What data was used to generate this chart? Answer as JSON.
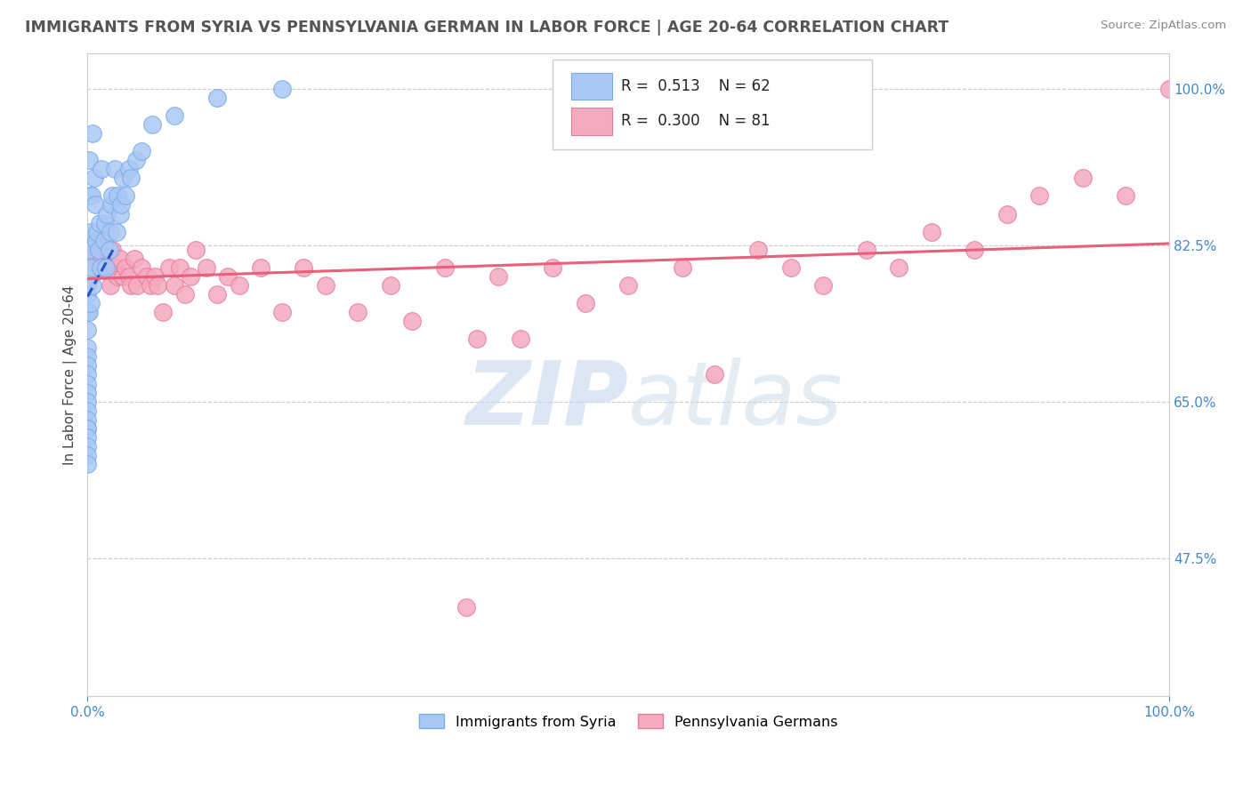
{
  "title": "IMMIGRANTS FROM SYRIA VS PENNSYLVANIA GERMAN IN LABOR FORCE | AGE 20-64 CORRELATION CHART",
  "source_text": "Source: ZipAtlas.com",
  "ylabel": "In Labor Force | Age 20-64",
  "xmin": 0.0,
  "xmax": 1.0,
  "ymin": 0.32,
  "ymax": 1.04,
  "yticks": [
    0.475,
    0.65,
    0.825,
    1.0
  ],
  "ytick_labels": [
    "47.5%",
    "65.0%",
    "82.5%",
    "100.0%"
  ],
  "xtick_labels": [
    "0.0%",
    "100.0%"
  ],
  "legend_R1": "0.513",
  "legend_N1": "62",
  "legend_R2": "0.300",
  "legend_N2": "81",
  "color_syria": "#aac8f5",
  "color_pa_german": "#f5aac0",
  "edge_syria": "#7aaae8",
  "edge_pa": "#e87a9a",
  "trendline_color_syria": "#2255cc",
  "trendline_color_pa_german": "#e8607a",
  "watermark_color": "#c5d8ee",
  "background_color": "#ffffff",
  "syria_x": [
    0.0,
    0.0,
    0.0,
    0.0,
    0.0,
    0.0,
    0.0,
    0.0,
    0.0,
    0.0,
    0.0,
    0.0,
    0.0,
    0.0,
    0.0,
    0.0,
    0.0,
    0.0,
    0.0,
    0.0,
    0.001,
    0.001,
    0.001,
    0.002,
    0.002,
    0.003,
    0.003,
    0.004,
    0.004,
    0.005,
    0.005,
    0.006,
    0.007,
    0.008,
    0.009,
    0.01,
    0.011,
    0.012,
    0.013,
    0.015,
    0.016,
    0.017,
    0.018,
    0.02,
    0.021,
    0.022,
    0.023,
    0.025,
    0.027,
    0.028,
    0.03,
    0.031,
    0.033,
    0.035,
    0.038,
    0.04,
    0.045,
    0.05,
    0.06,
    0.08,
    0.12,
    0.18
  ],
  "syria_y": [
    0.83,
    0.79,
    0.77,
    0.75,
    0.73,
    0.71,
    0.7,
    0.69,
    0.68,
    0.67,
    0.66,
    0.65,
    0.64,
    0.63,
    0.62,
    0.62,
    0.61,
    0.6,
    0.59,
    0.58,
    0.92,
    0.82,
    0.75,
    0.88,
    0.79,
    0.84,
    0.76,
    0.88,
    0.8,
    0.95,
    0.78,
    0.9,
    0.87,
    0.83,
    0.84,
    0.82,
    0.85,
    0.8,
    0.91,
    0.83,
    0.85,
    0.8,
    0.86,
    0.82,
    0.84,
    0.87,
    0.88,
    0.91,
    0.84,
    0.88,
    0.86,
    0.87,
    0.9,
    0.88,
    0.91,
    0.9,
    0.92,
    0.93,
    0.96,
    0.97,
    0.99,
    1.0
  ],
  "pa_x": [
    0.0,
    0.0,
    0.0,
    0.0,
    0.0,
    0.0,
    0.0,
    0.0,
    0.001,
    0.001,
    0.002,
    0.003,
    0.004,
    0.005,
    0.006,
    0.007,
    0.008,
    0.009,
    0.01,
    0.011,
    0.012,
    0.013,
    0.015,
    0.017,
    0.019,
    0.021,
    0.023,
    0.025,
    0.028,
    0.03,
    0.033,
    0.035,
    0.038,
    0.04,
    0.043,
    0.046,
    0.05,
    0.055,
    0.058,
    0.062,
    0.065,
    0.07,
    0.075,
    0.08,
    0.085,
    0.09,
    0.095,
    0.1,
    0.11,
    0.12,
    0.13,
    0.14,
    0.16,
    0.18,
    0.2,
    0.22,
    0.25,
    0.28,
    0.3,
    0.33,
    0.36,
    0.38,
    0.4,
    0.43,
    0.46,
    0.5,
    0.55,
    0.58,
    0.62,
    0.65,
    0.68,
    0.72,
    0.75,
    0.78,
    0.82,
    0.85,
    0.88,
    0.92,
    0.96,
    1.0,
    0.35
  ],
  "pa_y": [
    0.83,
    0.8,
    0.78,
    0.82,
    0.81,
    0.8,
    0.79,
    0.82,
    0.81,
    0.82,
    0.8,
    0.79,
    0.82,
    0.8,
    0.81,
    0.82,
    0.8,
    0.82,
    0.83,
    0.82,
    0.81,
    0.83,
    0.8,
    0.82,
    0.8,
    0.78,
    0.82,
    0.8,
    0.79,
    0.81,
    0.79,
    0.8,
    0.79,
    0.78,
    0.81,
    0.78,
    0.8,
    0.79,
    0.78,
    0.79,
    0.78,
    0.75,
    0.8,
    0.78,
    0.8,
    0.77,
    0.79,
    0.82,
    0.8,
    0.77,
    0.79,
    0.78,
    0.8,
    0.75,
    0.8,
    0.78,
    0.75,
    0.78,
    0.74,
    0.8,
    0.72,
    0.79,
    0.72,
    0.8,
    0.76,
    0.78,
    0.8,
    0.68,
    0.82,
    0.8,
    0.78,
    0.82,
    0.8,
    0.84,
    0.82,
    0.86,
    0.88,
    0.9,
    0.88,
    1.0,
    0.42
  ]
}
